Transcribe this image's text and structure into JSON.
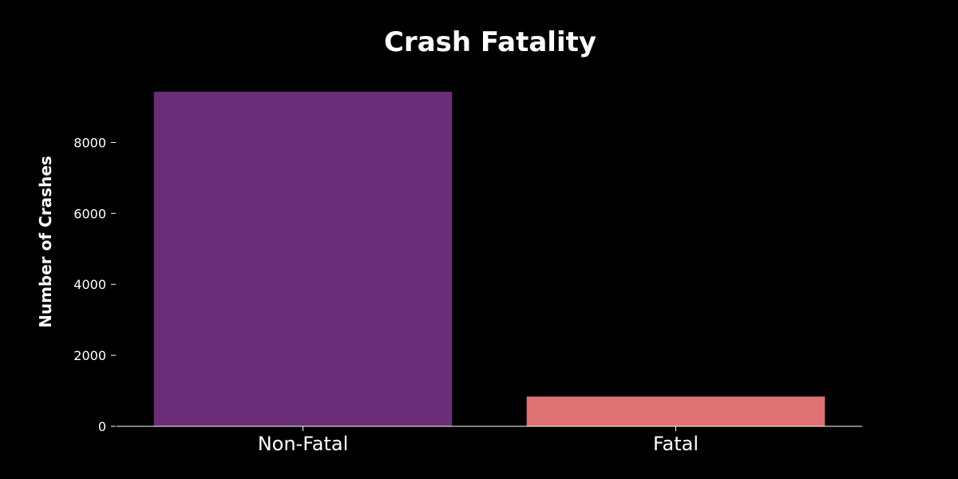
{
  "chart_data": {
    "type": "bar",
    "title": "Crash Fatality",
    "xlabel": "",
    "ylabel": "Number of Crashes",
    "categories": [
      "Non-Fatal",
      "Fatal"
    ],
    "values": [
      9430,
      840
    ],
    "colors": [
      "#6a2e78",
      "#df7272"
    ],
    "yticks": [
      0,
      2000,
      4000,
      6000,
      8000
    ],
    "ytick_labels": [
      "0",
      "2000",
      "4000",
      "6000",
      "8000"
    ],
    "ylim": [
      0,
      9900
    ],
    "grid": false,
    "legend": "none",
    "background": "#000000",
    "text_color": "#ffffff"
  }
}
